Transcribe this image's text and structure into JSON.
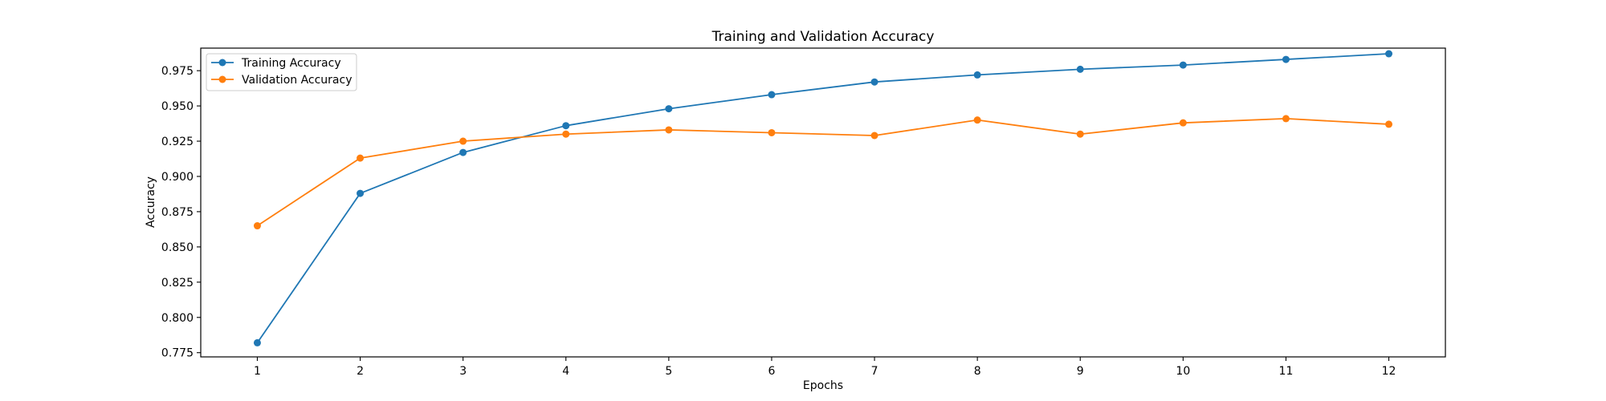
{
  "chart_data": {
    "type": "line",
    "title": "Training and Validation Accuracy",
    "xlabel": "Epochs",
    "ylabel": "Accuracy",
    "x": [
      1,
      2,
      3,
      4,
      5,
      6,
      7,
      8,
      9,
      10,
      11,
      12
    ],
    "xlim": [
      0.45,
      12.55
    ],
    "ylim": [
      0.772,
      0.991
    ],
    "yticks": [
      0.775,
      0.8,
      0.825,
      0.85,
      0.875,
      0.9,
      0.925,
      0.95,
      0.975
    ],
    "ytick_labels": [
      "0.775",
      "0.800",
      "0.825",
      "0.850",
      "0.875",
      "0.900",
      "0.925",
      "0.950",
      "0.975"
    ],
    "xtick_labels": [
      "1",
      "2",
      "3",
      "4",
      "5",
      "6",
      "7",
      "8",
      "9",
      "10",
      "11",
      "12"
    ],
    "grid": false,
    "legend_position": "top-left",
    "series": [
      {
        "name": "Training Accuracy",
        "color": "#1f77b4",
        "values": [
          0.782,
          0.888,
          0.917,
          0.936,
          0.948,
          0.958,
          0.967,
          0.972,
          0.976,
          0.979,
          0.983,
          0.987
        ]
      },
      {
        "name": "Validation Accuracy",
        "color": "#ff7f0e",
        "values": [
          0.865,
          0.913,
          0.925,
          0.93,
          0.933,
          0.931,
          0.929,
          0.94,
          0.93,
          0.938,
          0.941,
          0.937
        ]
      }
    ]
  }
}
